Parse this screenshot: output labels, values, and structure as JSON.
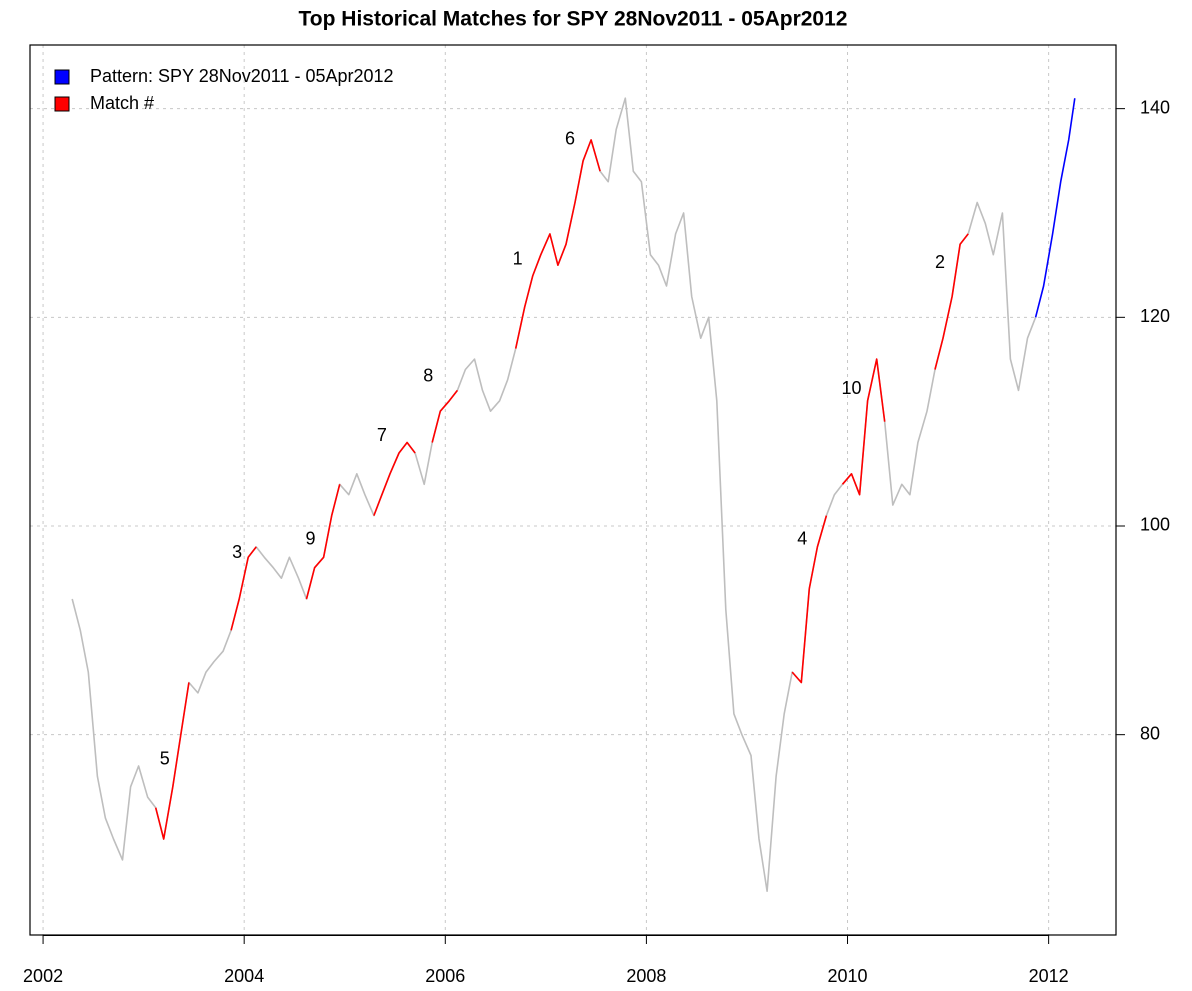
{
  "chart_data": {
    "type": "line",
    "title": "Top Historical Matches for SPY 28Nov2011 - 05Apr2012",
    "x": [
      2002.29,
      2002.37,
      2002.45,
      2002.54,
      2002.62,
      2002.7,
      2002.79,
      2002.87,
      2002.95,
      2003.04,
      2003.12,
      2003.2,
      2003.29,
      2003.37,
      2003.45,
      2003.54,
      2003.62,
      2003.7,
      2003.79,
      2003.87,
      2003.95,
      2004.04,
      2004.12,
      2004.2,
      2004.29,
      2004.37,
      2004.45,
      2004.54,
      2004.62,
      2004.7,
      2004.79,
      2004.87,
      2004.95,
      2005.04,
      2005.12,
      2005.2,
      2005.29,
      2005.37,
      2005.45,
      2005.54,
      2005.62,
      2005.7,
      2005.79,
      2005.87,
      2005.95,
      2006.04,
      2006.12,
      2006.2,
      2006.29,
      2006.37,
      2006.45,
      2006.54,
      2006.62,
      2006.7,
      2006.79,
      2006.87,
      2006.95,
      2007.04,
      2007.12,
      2007.2,
      2007.29,
      2007.37,
      2007.45,
      2007.54,
      2007.62,
      2007.7,
      2007.79,
      2007.87,
      2007.95,
      2008.04,
      2008.12,
      2008.2,
      2008.29,
      2008.37,
      2008.45,
      2008.54,
      2008.62,
      2008.7,
      2008.79,
      2008.87,
      2008.95,
      2009.04,
      2009.12,
      2009.2,
      2009.29,
      2009.37,
      2009.45,
      2009.54,
      2009.62,
      2009.7,
      2009.79,
      2009.87,
      2009.95,
      2010.04,
      2010.12,
      2010.2,
      2010.29,
      2010.37,
      2010.45,
      2010.54,
      2010.62,
      2010.7,
      2010.79,
      2010.87,
      2010.95,
      2011.04,
      2011.12,
      2011.2,
      2011.29,
      2011.37,
      2011.45,
      2011.54,
      2011.62,
      2011.7,
      2011.79,
      2011.87,
      2011.95,
      2012.04,
      2012.12,
      2012.2,
      2012.26
    ],
    "series": [
      {
        "color": "#bebebe",
        "values": [
          93,
          90,
          86,
          76,
          72,
          70,
          68,
          75,
          77,
          74,
          73,
          70,
          75,
          80,
          85,
          84,
          86,
          87,
          88,
          90,
          93,
          97,
          98,
          97,
          96,
          95,
          97,
          95,
          93,
          96,
          97,
          101,
          104,
          103,
          105,
          103,
          101,
          103,
          105,
          107,
          108,
          107,
          104,
          108,
          111,
          112,
          113,
          115,
          116,
          113,
          111,
          112,
          114,
          117,
          121,
          124,
          126,
          128,
          125,
          127,
          131,
          135,
          137,
          134,
          133,
          138,
          141,
          134,
          133,
          126,
          125,
          123,
          128,
          130,
          122,
          118,
          120,
          112,
          92,
          82,
          80,
          78,
          70,
          65,
          76,
          82,
          86,
          85,
          94,
          98,
          101,
          103,
          104,
          105,
          103,
          112,
          116,
          110,
          102,
          104,
          103,
          108,
          111,
          115,
          118,
          122,
          127,
          128,
          131,
          129,
          126,
          130,
          116,
          113,
          118,
          120,
          null,
          null,
          null,
          null,
          null
        ]
      },
      {
        "name": "Pattern:  SPY 28Nov2011 - 05Apr2012",
        "color": "#0000ff",
        "values": [
          null,
          null,
          null,
          null,
          null,
          null,
          null,
          null,
          null,
          null,
          null,
          null,
          null,
          null,
          null,
          null,
          null,
          null,
          null,
          null,
          null,
          null,
          null,
          null,
          null,
          null,
          null,
          null,
          null,
          null,
          null,
          null,
          null,
          null,
          null,
          null,
          null,
          null,
          null,
          null,
          null,
          null,
          null,
          null,
          null,
          null,
          null,
          null,
          null,
          null,
          null,
          null,
          null,
          null,
          null,
          null,
          null,
          null,
          null,
          null,
          null,
          null,
          null,
          null,
          null,
          null,
          null,
          null,
          null,
          null,
          null,
          null,
          null,
          null,
          null,
          null,
          null,
          null,
          null,
          null,
          null,
          null,
          null,
          null,
          null,
          null,
          null,
          null,
          null,
          null,
          null,
          null,
          null,
          null,
          null,
          null,
          null,
          null,
          null,
          null,
          null,
          null,
          null,
          null,
          null,
          null,
          null,
          null,
          null,
          null,
          null,
          null,
          null,
          null,
          null,
          120,
          123,
          128,
          133,
          137,
          141
        ]
      },
      {
        "name": "Match #",
        "color": "#ff0000",
        "values": [
          null,
          null,
          null,
          null,
          null,
          null,
          null,
          null,
          null,
          null,
          73,
          70,
          75,
          80,
          85,
          null,
          null,
          null,
          null,
          90,
          93,
          97,
          98,
          null,
          null,
          null,
          null,
          null,
          93,
          96,
          97,
          101,
          104,
          null,
          null,
          null,
          101,
          103,
          105,
          107,
          108,
          107,
          null,
          108,
          111,
          112,
          113,
          null,
          null,
          null,
          null,
          null,
          null,
          117,
          121,
          124,
          126,
          128,
          125,
          127,
          131,
          135,
          137,
          134,
          null,
          null,
          null,
          null,
          null,
          null,
          null,
          null,
          null,
          null,
          null,
          null,
          null,
          null,
          null,
          null,
          null,
          null,
          null,
          null,
          null,
          null,
          86,
          85,
          94,
          98,
          101,
          null,
          104,
          105,
          103,
          112,
          116,
          110,
          null,
          null,
          null,
          null,
          null,
          115,
          118,
          122,
          127,
          128,
          null,
          null,
          null,
          null,
          null,
          null,
          null,
          null,
          null,
          null,
          null,
          null,
          null
        ]
      }
    ],
    "annotations": [
      {
        "text": "1",
        "x": 2006.72,
        "y": 125.5
      },
      {
        "text": "2",
        "x": 2010.92,
        "y": 125.2
      },
      {
        "text": "3",
        "x": 2003.93,
        "y": 97.4
      },
      {
        "text": "4",
        "x": 2009.55,
        "y": 98.7
      },
      {
        "text": "5",
        "x": 2003.21,
        "y": 77.6
      },
      {
        "text": "6",
        "x": 2007.24,
        "y": 137
      },
      {
        "text": "7",
        "x": 2005.37,
        "y": 108.6
      },
      {
        "text": "8",
        "x": 2005.83,
        "y": 114.3
      },
      {
        "text": "9",
        "x": 2004.66,
        "y": 98.7
      },
      {
        "text": "10",
        "x": 2010.04,
        "y": 113.1
      }
    ],
    "xlim": [
      2001.87,
      2012.67
    ],
    "ylim": [
      60.8,
      146.1
    ],
    "xticks": [
      2002,
      2004,
      2006,
      2008,
      2010,
      2012
    ],
    "yticks": [
      80,
      100,
      120,
      140
    ],
    "grid": true,
    "legend": "top-left"
  }
}
